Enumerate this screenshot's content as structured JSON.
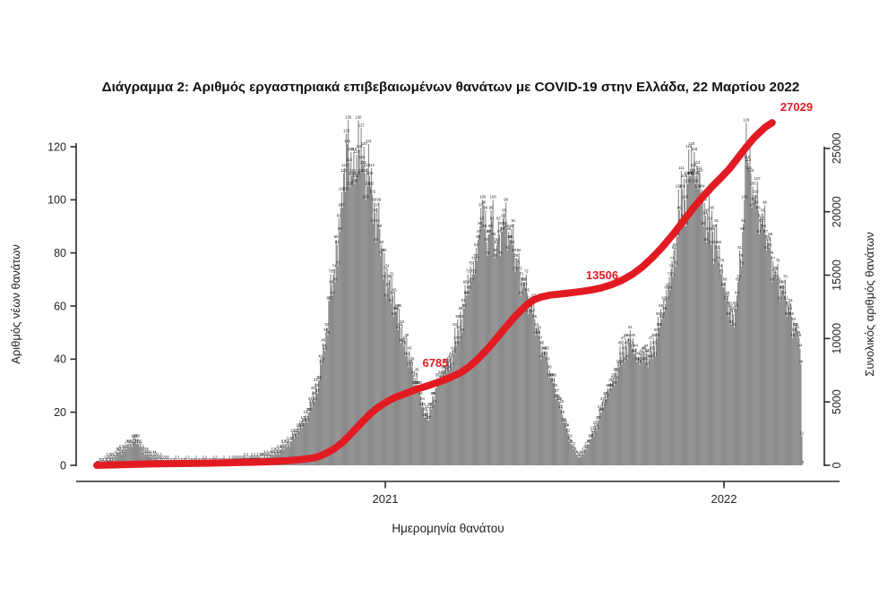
{
  "title": "Διάγραμμα 2: Αριθμός εργαστηριακά επιβεβαιωμένων θανάτων με COVID-19 στην Ελλάδα, 22 Μαρτίου 2022",
  "colors": {
    "bar": "#8b8b8b",
    "bar_label": "#1c1c1c",
    "line": "#e21b23",
    "axis": "#2b2b2b",
    "text": "#222222",
    "title": "#111111"
  },
  "chart_data": {
    "type": "bar+line combo (daily bars, cumulative line)",
    "title": "Διάγραμμα 2: Αριθμός εργαστηριακά επιβεβαιωμένων θανάτων με COVID-19 στην Ελλάδα, 22 Μαρτίου 2022",
    "n_days": 762,
    "left_axis": {
      "label": "Αριθμός νέων θανάτων",
      "ticks": [
        0,
        20,
        40,
        60,
        80,
        100,
        120
      ],
      "range": [
        0,
        130
      ]
    },
    "right_axis": {
      "label": "Συνολικός αριθμός θανάτων",
      "ticks": [
        0,
        5000,
        10000,
        15000,
        20000,
        25000
      ],
      "range": [
        0,
        27100
      ]
    },
    "x_axis": {
      "label": "Ημερομηνία θανάτου",
      "ticks": [
        {
          "label": "2021",
          "day": 311
        },
        {
          "label": "2022",
          "day": 676
        }
      ]
    },
    "bars": {
      "series_name": "Αριθμός νέων θανάτων",
      "envelope": [
        [
          0,
          0
        ],
        [
          6,
          1
        ],
        [
          12,
          2
        ],
        [
          18,
          3
        ],
        [
          24,
          5
        ],
        [
          30,
          6
        ],
        [
          36,
          8
        ],
        [
          41,
          10
        ],
        [
          45,
          8
        ],
        [
          50,
          6
        ],
        [
          56,
          4
        ],
        [
          62,
          3
        ],
        [
          70,
          2
        ],
        [
          80,
          1
        ],
        [
          95,
          1
        ],
        [
          110,
          1
        ],
        [
          125,
          1
        ],
        [
          140,
          1
        ],
        [
          155,
          2
        ],
        [
          168,
          2
        ],
        [
          178,
          3
        ],
        [
          188,
          4
        ],
        [
          196,
          5
        ],
        [
          203,
          8
        ],
        [
          209,
          9
        ],
        [
          214,
          12
        ],
        [
          219,
          14
        ],
        [
          224,
          16
        ],
        [
          229,
          20
        ],
        [
          234,
          26
        ],
        [
          239,
          32
        ],
        [
          243,
          39
        ],
        [
          247,
          50
        ],
        [
          251,
          62
        ],
        [
          255,
          72
        ],
        [
          259,
          83
        ],
        [
          263,
          97
        ],
        [
          266,
          110
        ],
        [
          270,
          121
        ],
        [
          273,
          105
        ],
        [
          276,
          110
        ],
        [
          279,
          108
        ],
        [
          283,
          119
        ],
        [
          287,
          113
        ],
        [
          291,
          112
        ],
        [
          295,
          105
        ],
        [
          299,
          99
        ],
        [
          303,
          91
        ],
        [
          307,
          83
        ],
        [
          311,
          73
        ],
        [
          315,
          70
        ],
        [
          319,
          64
        ],
        [
          323,
          58
        ],
        [
          327,
          52
        ],
        [
          331,
          45
        ],
        [
          335,
          41
        ],
        [
          339,
          37
        ],
        [
          343,
          33
        ],
        [
          347,
          28
        ],
        [
          351,
          24
        ],
        [
          354,
          20
        ],
        [
          357,
          17
        ],
        [
          360,
          22
        ],
        [
          363,
          26
        ],
        [
          366,
          29
        ],
        [
          369,
          30
        ],
        [
          372,
          33
        ],
        [
          375,
          36
        ],
        [
          378,
          38
        ],
        [
          381,
          40
        ],
        [
          384,
          43
        ],
        [
          387,
          47
        ],
        [
          390,
          51
        ],
        [
          393,
          55
        ],
        [
          396,
          59
        ],
        [
          399,
          64
        ],
        [
          402,
          68
        ],
        [
          405,
          72
        ],
        [
          408,
          78
        ],
        [
          411,
          85
        ],
        [
          413,
          90
        ],
        [
          415,
          92
        ],
        [
          416,
          100
        ],
        [
          418,
          89
        ],
        [
          420,
          84
        ],
        [
          422,
          87
        ],
        [
          424,
          89
        ],
        [
          426,
          92
        ],
        [
          428,
          86
        ],
        [
          430,
          80
        ],
        [
          432,
          84
        ],
        [
          434,
          87
        ],
        [
          436,
          90
        ],
        [
          438,
          93
        ],
        [
          440,
          90
        ],
        [
          442,
          89
        ],
        [
          444,
          88
        ],
        [
          446,
          85
        ],
        [
          448,
          83
        ],
        [
          450,
          80
        ],
        [
          452,
          78
        ],
        [
          454,
          75
        ],
        [
          456,
          73
        ],
        [
          458,
          71
        ],
        [
          460,
          69
        ],
        [
          462,
          67
        ],
        [
          464,
          65
        ],
        [
          466,
          62
        ],
        [
          468,
          60
        ],
        [
          470,
          57
        ],
        [
          472,
          55
        ],
        [
          474,
          52
        ],
        [
          476,
          49
        ],
        [
          478,
          47
        ],
        [
          480,
          45
        ],
        [
          482,
          43
        ],
        [
          484,
          41
        ],
        [
          486,
          39
        ],
        [
          488,
          36
        ],
        [
          490,
          33
        ],
        [
          492,
          31
        ],
        [
          494,
          29
        ],
        [
          496,
          27
        ],
        [
          498,
          24
        ],
        [
          500,
          21
        ],
        [
          502,
          19
        ],
        [
          504,
          16
        ],
        [
          506,
          14
        ],
        [
          508,
          12
        ],
        [
          510,
          10
        ],
        [
          512,
          8
        ],
        [
          514,
          6
        ],
        [
          516,
          5
        ],
        [
          518,
          4
        ],
        [
          520,
          3
        ],
        [
          523,
          4
        ],
        [
          526,
          6
        ],
        [
          529,
          8
        ],
        [
          532,
          10
        ],
        [
          535,
          12
        ],
        [
          538,
          14
        ],
        [
          541,
          17
        ],
        [
          544,
          20
        ],
        [
          547,
          23
        ],
        [
          550,
          26
        ],
        [
          553,
          29
        ],
        [
          556,
          32
        ],
        [
          559,
          35
        ],
        [
          562,
          38
        ],
        [
          565,
          41
        ],
        [
          568,
          43
        ],
        [
          571,
          45
        ],
        [
          574,
          46
        ],
        [
          577,
          44
        ],
        [
          580,
          42
        ],
        [
          583,
          39
        ],
        [
          586,
          41
        ],
        [
          589,
          43
        ],
        [
          592,
          44
        ],
        [
          595,
          42
        ],
        [
          598,
          43
        ],
        [
          601,
          45
        ],
        [
          604,
          48
        ],
        [
          607,
          52
        ],
        [
          610,
          56
        ],
        [
          613,
          61
        ],
        [
          616,
          67
        ],
        [
          619,
          74
        ],
        [
          622,
          81
        ],
        [
          625,
          88
        ],
        [
          628,
          96
        ],
        [
          631,
          104
        ],
        [
          634,
          100
        ],
        [
          637,
          106
        ],
        [
          640,
          109
        ],
        [
          643,
          112
        ],
        [
          646,
          109
        ],
        [
          649,
          111
        ],
        [
          652,
          104
        ],
        [
          655,
          99
        ],
        [
          658,
          95
        ],
        [
          661,
          92
        ],
        [
          664,
          88
        ],
        [
          667,
          83
        ],
        [
          670,
          77
        ],
        [
          673,
          72
        ],
        [
          676,
          67
        ],
        [
          679,
          63
        ],
        [
          682,
          60
        ],
        [
          685,
          58
        ],
        [
          688,
          60
        ],
        [
          690,
          64
        ],
        [
          692,
          70
        ],
        [
          694,
          78
        ],
        [
          696,
          88
        ],
        [
          698,
          100
        ],
        [
          700,
          129
        ],
        [
          701,
          115
        ],
        [
          703,
          111
        ],
        [
          705,
          110
        ],
        [
          707,
          105
        ],
        [
          709,
          100
        ],
        [
          711,
          98
        ],
        [
          713,
          96
        ],
        [
          715,
          93
        ],
        [
          717,
          92
        ],
        [
          719,
          89
        ],
        [
          721,
          87
        ],
        [
          723,
          85
        ],
        [
          725,
          82
        ],
        [
          727,
          79
        ],
        [
          729,
          77
        ],
        [
          731,
          73
        ],
        [
          733,
          70
        ],
        [
          735,
          69
        ],
        [
          737,
          68
        ],
        [
          739,
          66
        ],
        [
          741,
          64
        ],
        [
          743,
          62
        ],
        [
          745,
          60
        ],
        [
          747,
          58
        ],
        [
          749,
          56
        ],
        [
          751,
          54
        ],
        [
          753,
          52
        ],
        [
          755,
          51
        ],
        [
          756,
          49
        ],
        [
          757,
          48
        ],
        [
          758,
          44
        ],
        [
          759,
          38
        ],
        [
          760,
          11
        ],
        [
          761,
          0
        ]
      ]
    },
    "cumulative": {
      "series_name": "Συνολικός αριθμός θανάτων",
      "points": [
        [
          0,
          0
        ],
        [
          60,
          110
        ],
        [
          120,
          170
        ],
        [
          180,
          260
        ],
        [
          205,
          360
        ],
        [
          222,
          470
        ],
        [
          235,
          600
        ],
        [
          243,
          800
        ],
        [
          250,
          1050
        ],
        [
          257,
          1350
        ],
        [
          264,
          1750
        ],
        [
          271,
          2250
        ],
        [
          278,
          2800
        ],
        [
          286,
          3400
        ],
        [
          294,
          4000
        ],
        [
          302,
          4500
        ],
        [
          311,
          4950
        ],
        [
          320,
          5300
        ],
        [
          332,
          5650
        ],
        [
          345,
          6000
        ],
        [
          358,
          6300
        ],
        [
          370,
          6600
        ],
        [
          382,
          6950
        ],
        [
          392,
          7300
        ],
        [
          401,
          7750
        ],
        [
          409,
          8250
        ],
        [
          417,
          8850
        ],
        [
          425,
          9500
        ],
        [
          433,
          10200
        ],
        [
          441,
          10900
        ],
        [
          449,
          11600
        ],
        [
          457,
          12200
        ],
        [
          464,
          12700
        ],
        [
          471,
          13050
        ],
        [
          479,
          13280
        ],
        [
          489,
          13430
        ],
        [
          500,
          13520
        ],
        [
          511,
          13610
        ],
        [
          522,
          13710
        ],
        [
          533,
          13830
        ],
        [
          544,
          14000
        ],
        [
          555,
          14250
        ],
        [
          566,
          14600
        ],
        [
          577,
          15050
        ],
        [
          588,
          15650
        ],
        [
          599,
          16400
        ],
        [
          610,
          17250
        ],
        [
          621,
          18200
        ],
        [
          632,
          19250
        ],
        [
          643,
          20300
        ],
        [
          654,
          21250
        ],
        [
          664,
          22050
        ],
        [
          673,
          22700
        ],
        [
          682,
          23400
        ],
        [
          691,
          24250
        ],
        [
          700,
          25100
        ],
        [
          708,
          25800
        ],
        [
          715,
          26300
        ],
        [
          721,
          26700
        ],
        [
          728,
          27029
        ]
      ]
    },
    "annotations": [
      {
        "text": "6785"
      },
      {
        "text": "13506"
      },
      {
        "text": "27029"
      }
    ]
  }
}
